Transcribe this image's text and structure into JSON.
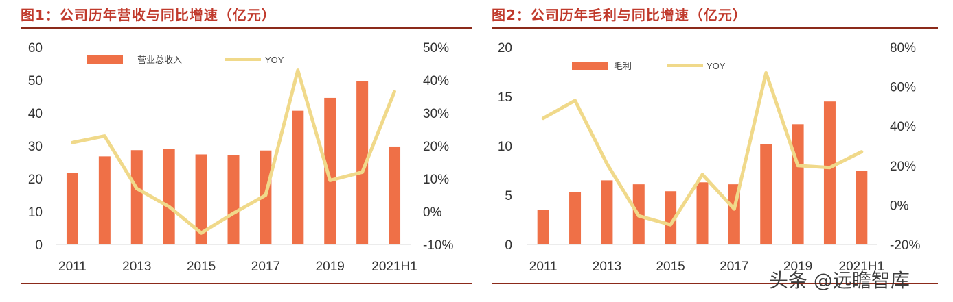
{
  "watermark": "头条 @远瞻智库",
  "chart_data": [
    {
      "type": "bar",
      "title": "图1：公司历年营收与同比增速（亿元）",
      "categories": [
        "2011",
        "2012",
        "2013",
        "2014",
        "2015",
        "2016",
        "2017",
        "2018",
        "2019",
        "2020",
        "2021H1"
      ],
      "tick_labels_x": [
        "2011",
        "2013",
        "2015",
        "2017",
        "2019",
        "2021H1"
      ],
      "series": [
        {
          "name": "营业总收入",
          "type": "bar",
          "axis": "left",
          "color": "#ef7047",
          "values": [
            21.8,
            26.8,
            28.7,
            29.1,
            27.4,
            27.2,
            28.6,
            40.7,
            44.6,
            49.7,
            29.8
          ]
        },
        {
          "name": "YOY",
          "type": "line",
          "axis": "right",
          "color": "#f0d98a",
          "values": [
            0.21,
            0.23,
            0.07,
            0.015,
            -0.065,
            -0.005,
            0.05,
            0.43,
            0.095,
            0.12,
            0.365
          ]
        }
      ],
      "ylim_left": [
        0,
        60
      ],
      "yticks_left": [
        "0",
        "10",
        "20",
        "30",
        "40",
        "50",
        "60"
      ],
      "ylim_right": [
        -0.1,
        0.5
      ],
      "yticks_right": [
        "-10%",
        "0%",
        "10%",
        "20%",
        "30%",
        "40%",
        "50%"
      ],
      "legend": "top"
    },
    {
      "type": "bar",
      "title": "图2：公司历年毛利与同比增速（亿元）",
      "categories": [
        "2011",
        "2012",
        "2013",
        "2014",
        "2015",
        "2016",
        "2017",
        "2018",
        "2019",
        "2020",
        "2021H1"
      ],
      "tick_labels_x": [
        "2011",
        "2013",
        "2015",
        "2017",
        "2019",
        "2021H1"
      ],
      "series": [
        {
          "name": "毛利",
          "type": "bar",
          "axis": "left",
          "color": "#ef7047",
          "values": [
            3.5,
            5.3,
            6.5,
            6.1,
            5.4,
            6.3,
            6.1,
            10.2,
            12.2,
            14.5,
            7.5
          ]
        },
        {
          "name": "YOY",
          "type": "line",
          "axis": "right",
          "color": "#f0d98a",
          "values": [
            0.44,
            0.53,
            0.21,
            -0.055,
            -0.1,
            0.155,
            -0.02,
            0.67,
            0.2,
            0.19,
            0.27
          ]
        }
      ],
      "ylim_left": [
        0,
        20
      ],
      "yticks_left": [
        "0",
        "5",
        "10",
        "15",
        "20"
      ],
      "ylim_right": [
        -0.2,
        0.8
      ],
      "yticks_right": [
        "-20%",
        "0%",
        "20%",
        "40%",
        "60%",
        "80%"
      ],
      "legend": "top"
    }
  ]
}
